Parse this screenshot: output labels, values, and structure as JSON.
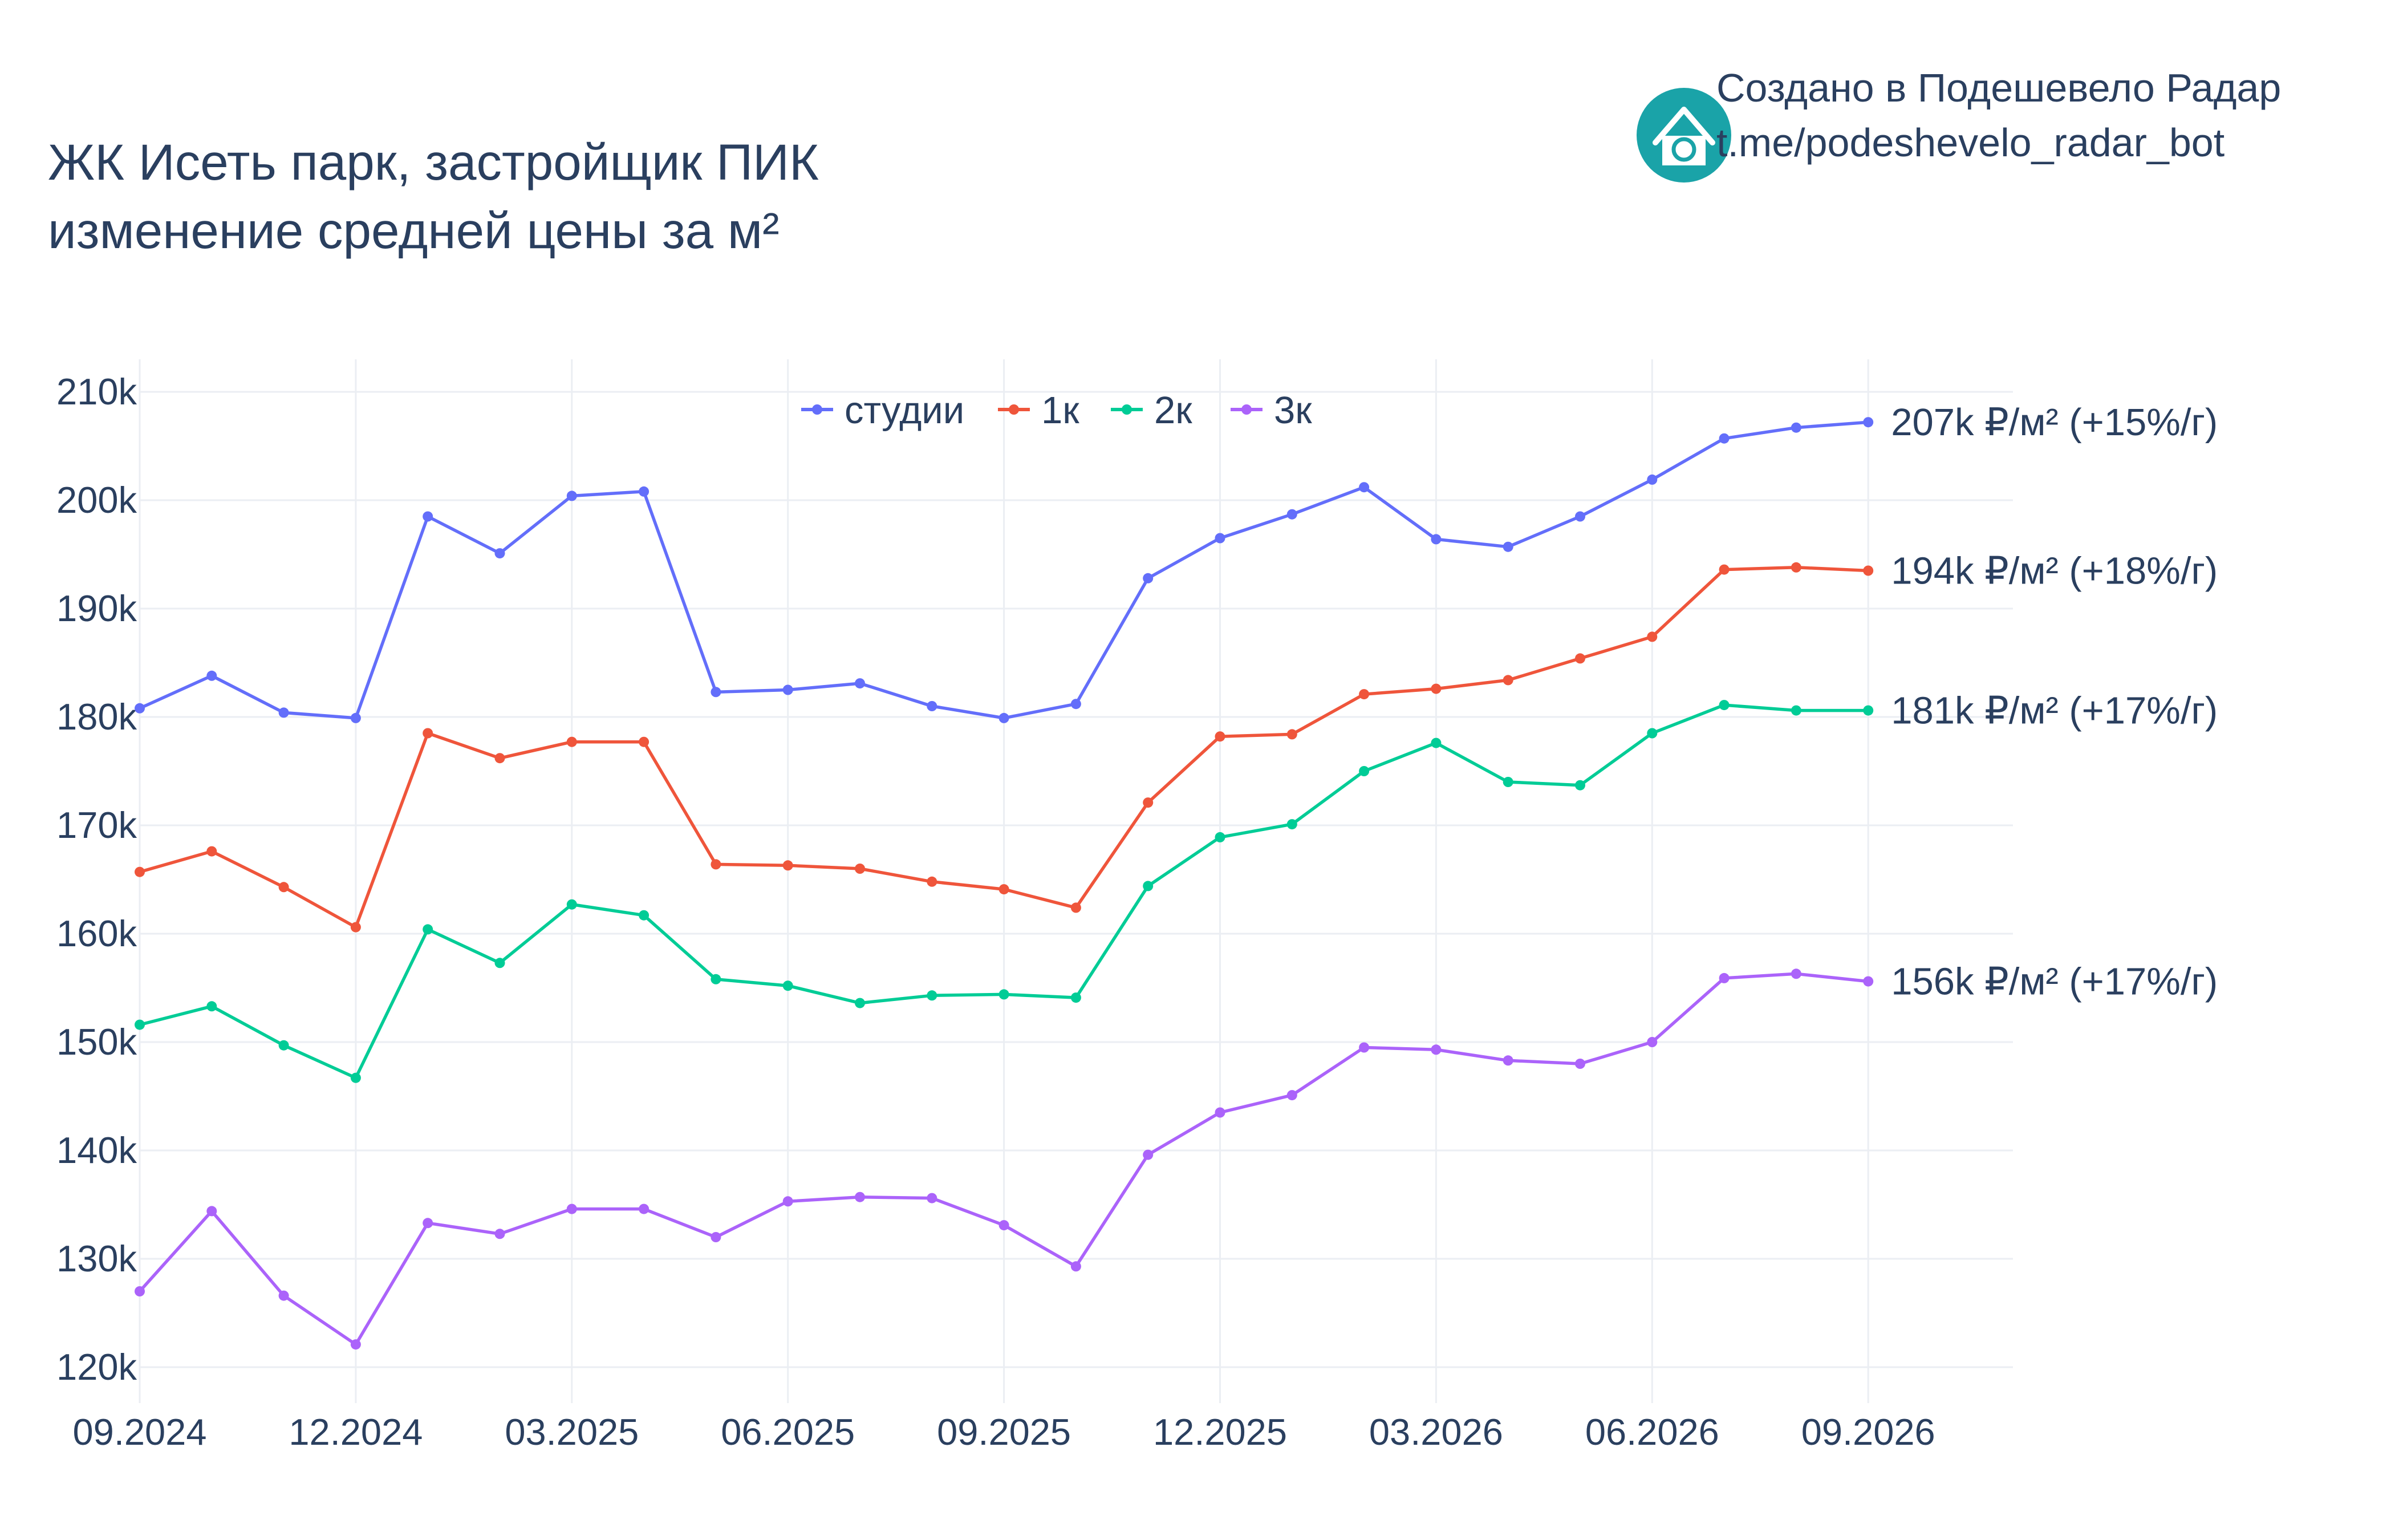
{
  "title": {
    "line1": "ЖК Исеть парк, застройщик ПИК",
    "line2": "изменение средней цены за м²"
  },
  "brand": {
    "line1": "Создано в Подешевело Радар",
    "line2": "t.me/podeshevelo_radar_bot",
    "icon": "house-refresh-icon",
    "icon_color": "#1aa3a8"
  },
  "chart_data": {
    "type": "line",
    "x": [
      "09.2024",
      "10.2024",
      "11.2024",
      "12.2024",
      "01.2025",
      "02.2025",
      "03.2025",
      "04.2025",
      "05.2025",
      "06.2025",
      "07.2025",
      "08.2025",
      "09.2025",
      "10.2025",
      "11.2025",
      "12.2025",
      "01.2026",
      "02.2026",
      "03.2026",
      "04.2026",
      "05.2026",
      "06.2026",
      "07.2026",
      "08.2026",
      "09.2026"
    ],
    "x_ticks": [
      "09.2024",
      "12.2024",
      "03.2025",
      "06.2025",
      "09.2025",
      "12.2025",
      "03.2026",
      "06.2026",
      "09.2026"
    ],
    "y_ticks": [
      120000,
      130000,
      140000,
      150000,
      160000,
      170000,
      180000,
      190000,
      200000,
      210000
    ],
    "y_tick_labels": [
      "120k",
      "130k",
      "140k",
      "150k",
      "160k",
      "170k",
      "180k",
      "190k",
      "200k",
      "210k"
    ],
    "ylim": [
      117500,
      212000
    ],
    "grid": true,
    "legend_position": "top-center",
    "series": [
      {
        "name": "студии",
        "color": "#636efa",
        "end_label": "207k ₽/м² (+15%/г)",
        "values": [
          180800,
          183800,
          180400,
          179900,
          198500,
          195100,
          200400,
          200800,
          182300,
          182500,
          183100,
          181000,
          179900,
          181200,
          192800,
          196500,
          198700,
          201200,
          196400,
          195700,
          198500,
          201900,
          205700,
          206700,
          207200
        ]
      },
      {
        "name": "1к",
        "color": "#ef553b",
        "end_label": "194k ₽/м² (+18%/г)",
        "values": [
          165700,
          167600,
          164300,
          160600,
          178500,
          176200,
          177700,
          177700,
          166400,
          166300,
          166000,
          164800,
          164100,
          162400,
          172100,
          178200,
          178400,
          182100,
          182600,
          183400,
          185400,
          187400,
          193600,
          193800,
          193500
        ]
      },
      {
        "name": "2к",
        "color": "#00cc96",
        "end_label": "181k ₽/м² (+17%/г)",
        "values": [
          151600,
          153300,
          149700,
          146700,
          160400,
          157300,
          162700,
          161700,
          155800,
          155200,
          153600,
          154300,
          154400,
          154100,
          164400,
          168900,
          170100,
          175000,
          177600,
          174000,
          173700,
          178500,
          181100,
          180600,
          180600
        ]
      },
      {
        "name": "3к",
        "color": "#ab63fa",
        "end_label": "156k ₽/м² (+17%/г)",
        "values": [
          127000,
          134400,
          126600,
          122100,
          133300,
          132300,
          134600,
          134600,
          132000,
          135300,
          135700,
          135600,
          133100,
          129300,
          139600,
          143500,
          145100,
          149500,
          149300,
          148300,
          148000,
          150000,
          155900,
          156300,
          155600
        ]
      }
    ]
  }
}
